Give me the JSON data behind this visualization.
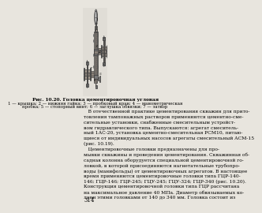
{
  "page_bg": "#e8e5de",
  "draw_bg": "#dedad3",
  "fig_caption": "Рис. 10.20. Головка цементировочная угловая",
  "caption_sub_1": "1 — крышка; 2 — нижняя гайка; 3 — пробковый кран; 4 — манометрическая",
  "caption_sub_2": "пробка; 5 — стопорный винт; 6 — заглушка обвязки; 7 — затвор",
  "body_lines": [
    "   В отечественной практике цементирования скважин для прито-",
    "товления тампонажных растворов применяются цементно-сме-",
    "сительные установки, снабженные смесительным устройст-",
    "вом гидравлического типа. Выпускаются: агрегат смеситель-",
    "ный 1АС-20, установка цементно-смесительная РСМ10, питаю-",
    "щиеся от индивидуальных насосов агрегаты смесительный АСМ-15",
    "(рис. 10.19).",
    "   Цементировочные головки предназначены для про-",
    "мывки скважины и проведения цементирования. Скважинная об-",
    "садная колонна оборудуется специальной цементировочной го-",
    "ловкой, в которой присоединяются нагнетательные трубопро-",
    "воды (манифольды) от цементировочных агрегатов. В настоящее",
    "время применяются цементировочные головки типа ГЦР-140-",
    "146; ГЦР-146; ГЦР-245; ГЦУ-245; ГЦУ-324; ГЦР-340 (рис. 10.20).",
    "Конструкция цементировочной головки типа ГЦР рассчитана",
    "на максимальное давление 40 МПа. Диаметр обвязываемых ко-",
    "лонн этими головками от 140 до 340 мм. Головка состоит из"
  ],
  "page_num": "314",
  "caption_fontsize": 4.2,
  "body_fontsize": 4.3,
  "pagenum_fontsize": 5.0,
  "metal_dark": "#3a3a3a",
  "metal_mid": "#787878",
  "metal_light": "#aaaaaa",
  "metal_fill": "#a0978c",
  "metal_hatch": "#606060",
  "inner_bore": "#888078",
  "gauge_outer": "#c0c0c0",
  "gauge_inner": "#d8d8d8"
}
